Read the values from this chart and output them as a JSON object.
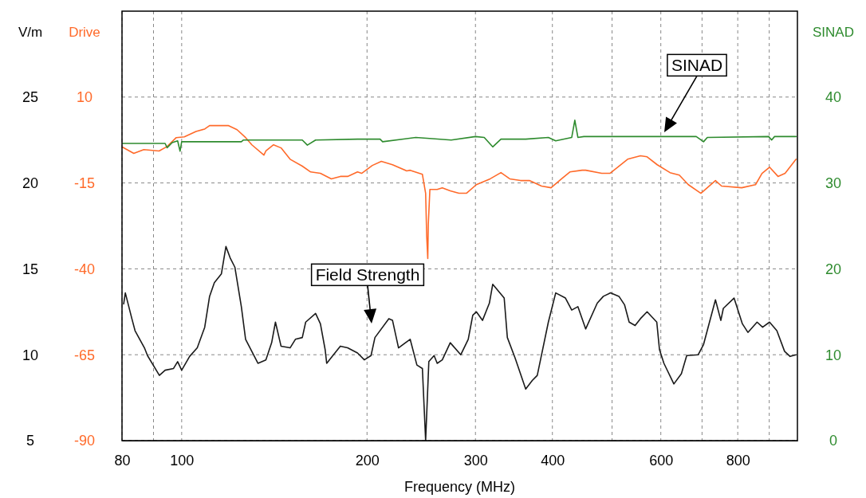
{
  "chart_data": {
    "type": "line",
    "xlabel": "Frequency (MHz)",
    "ylabel": "V/m",
    "y3label": "Drive",
    "y2label": "SINAD",
    "log": "x",
    "grid": true,
    "marker": "none",
    "line_style": "solid",
    "xlim": [
      80,
      1000
    ],
    "xticks": [
      80,
      {
        "value": 90,
        "label": null
      },
      100,
      200,
      300,
      400,
      {
        "value": 500,
        "label": null
      },
      600,
      {
        "value": 700,
        "label": null
      },
      800,
      {
        "value": 900,
        "label": null
      }
    ],
    "ylim": [
      5,
      30
    ],
    "yticks": [
      5,
      10,
      15,
      20,
      25
    ],
    "y3lim": [
      -90,
      35
    ],
    "y3ticks": [
      -90,
      -65,
      -40,
      -15,
      10
    ],
    "y2lim": [
      0,
      50
    ],
    "y2ticks": [
      0,
      10,
      20,
      30,
      40
    ],
    "series": [
      {
        "color": "#1a1a1a",
        "axis": "y",
        "x": [
          80.5,
          81,
          83,
          84,
          87,
          88,
          92,
          94,
          97,
          98.5,
          100,
          103,
          106,
          109,
          111,
          113,
          116,
          118,
          120,
          122,
          125,
          127,
          133,
          137,
          140,
          142,
          145,
          150,
          153,
          157,
          159,
          165,
          168,
          171,
          172,
          176,
          181,
          186,
          193,
          198,
          203,
          206,
          217,
          220,
          225,
          235,
          241,
          246,
          249,
          252,
          257,
          260,
          265,
          273,
          284,
          292,
          297,
          301,
          308,
          316,
          320,
          334,
          338,
          348,
          362,
          371,
          378,
          394,
          405,
          420,
          430,
          440,
          453,
          473,
          484,
          497,
          513,
          524,
          533,
          545,
          556,
          570,
          591,
          597,
          607,
          630,
          648,
          661,
          690,
          704,
          736,
          751,
          758,
          789,
          814,
          831,
          860,
          878,
          901,
          926,
          953,
          973,
          995
        ],
        "values": [
          12.96,
          13.6,
          12.1,
          11.4,
          10.4,
          9.95,
          8.8,
          9.1,
          9.2,
          9.6,
          9.1,
          9.9,
          10.4,
          11.6,
          13.4,
          14.2,
          14.7,
          16.3,
          15.6,
          15.1,
          12.8,
          10.9,
          9.5,
          9.7,
          10.7,
          11.9,
          10.5,
          10.4,
          10.9,
          11.0,
          11.9,
          12.4,
          11.8,
          10.3,
          9.5,
          9.95,
          10.5,
          10.4,
          10.1,
          9.7,
          9.95,
          11.0,
          12.1,
          12.0,
          10.4,
          10.9,
          9.4,
          9.2,
          5.0,
          9.6,
          9.95,
          9.5,
          9.7,
          10.7,
          10.0,
          10.9,
          12.3,
          12.5,
          12.0,
          13.0,
          14.1,
          13.3,
          11.0,
          9.8,
          8.0,
          8.5,
          8.8,
          11.9,
          13.6,
          13.3,
          12.6,
          12.8,
          11.5,
          13.0,
          13.4,
          13.6,
          13.4,
          12.9,
          11.9,
          11.7,
          12.1,
          12.5,
          11.9,
          10.3,
          9.5,
          8.3,
          8.9,
          9.95,
          10.0,
          10.6,
          13.2,
          12.0,
          12.7,
          13.3,
          11.8,
          11.3,
          11.9,
          11.6,
          11.9,
          11.4,
          10.2,
          9.9,
          10.0
        ]
      },
      {
        "color": "#ff6a2a",
        "axis": "y3",
        "x": [
          80.2,
          83.6,
          86.8,
          91.9,
          94.7,
          98,
          101,
          105.5,
          109,
          111,
          119,
          123,
          127,
          130,
          136,
          137,
          141,
          145,
          150,
          157,
          162,
          168,
          175,
          181,
          186,
          193,
          196,
          204,
          211,
          220,
          232,
          235,
          246,
          249,
          250,
          251,
          251.5,
          253,
          260,
          265,
          273,
          282,
          290,
          301,
          317,
          330,
          341,
          355,
          367,
          384,
          398,
          414,
          427,
          447,
          453,
          481,
          496,
          530,
          556,
          570,
          592,
          621,
          643,
          665,
          697,
          736,
          753,
          812,
          855,
          876,
          901,
          930,
          955,
          995
        ],
        "values": [
          -4.6,
          -6.4,
          -5.3,
          -5.7,
          -4.4,
          -1.8,
          -1.6,
          0.0,
          0.7,
          1.7,
          1.7,
          0.5,
          -1.8,
          -3.9,
          -6.9,
          -5.7,
          -3.9,
          -4.8,
          -8.1,
          -10.1,
          -11.8,
          -12.2,
          -13.8,
          -13.1,
          -13.1,
          -11.8,
          -12.2,
          -9.9,
          -8.7,
          -9.7,
          -11.5,
          -11.3,
          -12.5,
          -18.0,
          -30.5,
          -37.0,
          -27.0,
          -16.9,
          -16.9,
          -16.4,
          -17.3,
          -18.0,
          -18.0,
          -15.5,
          -13.8,
          -12.0,
          -13.8,
          -14.3,
          -14.3,
          -15.9,
          -16.4,
          -13.8,
          -11.8,
          -11.3,
          -11.3,
          -12.2,
          -12.2,
          -8.1,
          -7.1,
          -7.4,
          -9.7,
          -12.0,
          -12.7,
          -15.5,
          -18.0,
          -14.3,
          -15.9,
          -16.4,
          -15.5,
          -12.2,
          -10.4,
          -13.1,
          -12.2,
          -8.1
        ]
      },
      {
        "color": "#2e8b2e",
        "axis": "y2",
        "x": [
          80.2,
          94,
          94.7,
          96.5,
          98.5,
          99.4,
          100,
          109,
          125,
          126,
          157,
          160,
          165,
          193,
          210,
          212,
          240,
          274,
          300,
          310,
          320,
          330,
          362,
          394,
          405,
          430,
          435,
          440,
          450,
          685,
          704,
          714,
          898,
          908,
          918,
          995
        ],
        "values": [
          34.6,
          34.6,
          34.1,
          34.7,
          34.9,
          33.7,
          34.8,
          34.8,
          34.8,
          35.0,
          35.0,
          34.4,
          35.0,
          35.1,
          35.1,
          34.8,
          35.3,
          35.0,
          35.4,
          35.3,
          34.2,
          35.1,
          35.1,
          35.3,
          34.9,
          35.3,
          37.3,
          35.3,
          35.4,
          35.4,
          34.8,
          35.3,
          35.4,
          35.0,
          35.4,
          35.4
        ]
      }
    ],
    "annotations": [
      "SINAD",
      "Field Strength"
    ]
  }
}
